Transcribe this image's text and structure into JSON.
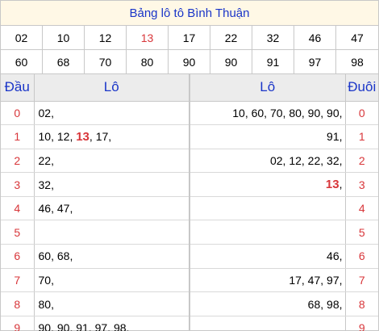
{
  "title": "Bảng lô tô Bình Thuận",
  "accent_color": "#d8363a",
  "prizes": [
    "02",
    "10",
    "12",
    "13",
    "17",
    "22",
    "32",
    "46",
    "47",
    "60",
    "68",
    "70",
    "80",
    "90",
    "90",
    "91",
    "97",
    "98"
  ],
  "highlight": "13",
  "headers": {
    "dau": "Đầu",
    "lo_left": "Lô",
    "lo_right": "Lô",
    "duoi": "Đuôi"
  },
  "rows": [
    {
      "digit": "0",
      "dau_list": [
        "02"
      ],
      "duoi_list": [
        "10",
        "60",
        "70",
        "80",
        "90",
        "90"
      ]
    },
    {
      "digit": "1",
      "dau_list": [
        "10",
        "12",
        "13",
        "17"
      ],
      "duoi_list": [
        "91"
      ]
    },
    {
      "digit": "2",
      "dau_list": [
        "22"
      ],
      "duoi_list": [
        "02",
        "12",
        "22",
        "32"
      ]
    },
    {
      "digit": "3",
      "dau_list": [
        "32"
      ],
      "duoi_list": [
        "13"
      ]
    },
    {
      "digit": "4",
      "dau_list": [
        "46",
        "47"
      ],
      "duoi_list": []
    },
    {
      "digit": "5",
      "dau_list": [],
      "duoi_list": []
    },
    {
      "digit": "6",
      "dau_list": [
        "60",
        "68"
      ],
      "duoi_list": [
        "46"
      ]
    },
    {
      "digit": "7",
      "dau_list": [
        "70"
      ],
      "duoi_list": [
        "17",
        "47",
        "97"
      ]
    },
    {
      "digit": "8",
      "dau_list": [
        "80"
      ],
      "duoi_list": [
        "68",
        "98"
      ]
    },
    {
      "digit": "9",
      "dau_list": [
        "90",
        "90",
        "91",
        "97",
        "98"
      ],
      "duoi_list": []
    }
  ]
}
